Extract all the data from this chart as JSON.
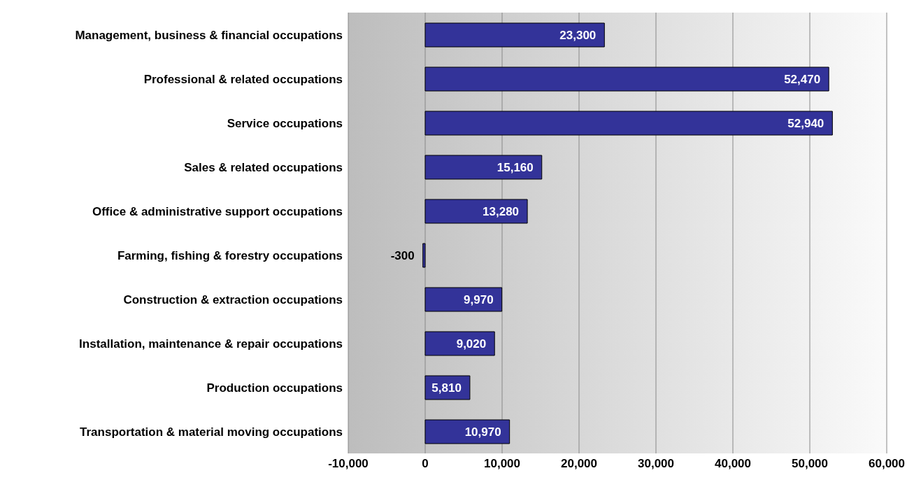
{
  "chart_data": {
    "type": "bar",
    "orientation": "horizontal",
    "categories": [
      "Management, business & financial occupations",
      "Professional & related occupations",
      "Service occupations",
      "Sales & related occupations",
      "Office & administrative support occupations",
      "Farming, fishing & forestry occupations",
      "Construction & extraction occupations",
      "Installation, maintenance & repair occupations",
      "Production occupations",
      "Transportation & material moving occupations"
    ],
    "values": [
      23300,
      52470,
      52940,
      15160,
      13280,
      -300,
      9970,
      9020,
      5810,
      10970
    ],
    "value_labels": [
      "23,300",
      "52,470",
      "52,940",
      "15,160",
      "13,280",
      "-300",
      "9,970",
      "9,020",
      "5,810",
      "10,970"
    ],
    "color": "#333399",
    "xlim": [
      -10000,
      60000
    ],
    "xticks": [
      {
        "value": -10000,
        "label": "-10,000"
      },
      0,
      {
        "value": 10000,
        "label": "10,000"
      },
      {
        "value": 20000,
        "label": "20,000"
      },
      {
        "value": 30000,
        "label": "30,000"
      },
      {
        "value": 40000,
        "label": "40,000"
      },
      {
        "value": 50000,
        "label": "50,000"
      },
      {
        "value": 60000,
        "label": "60,000"
      }
    ],
    "grid": "x"
  }
}
